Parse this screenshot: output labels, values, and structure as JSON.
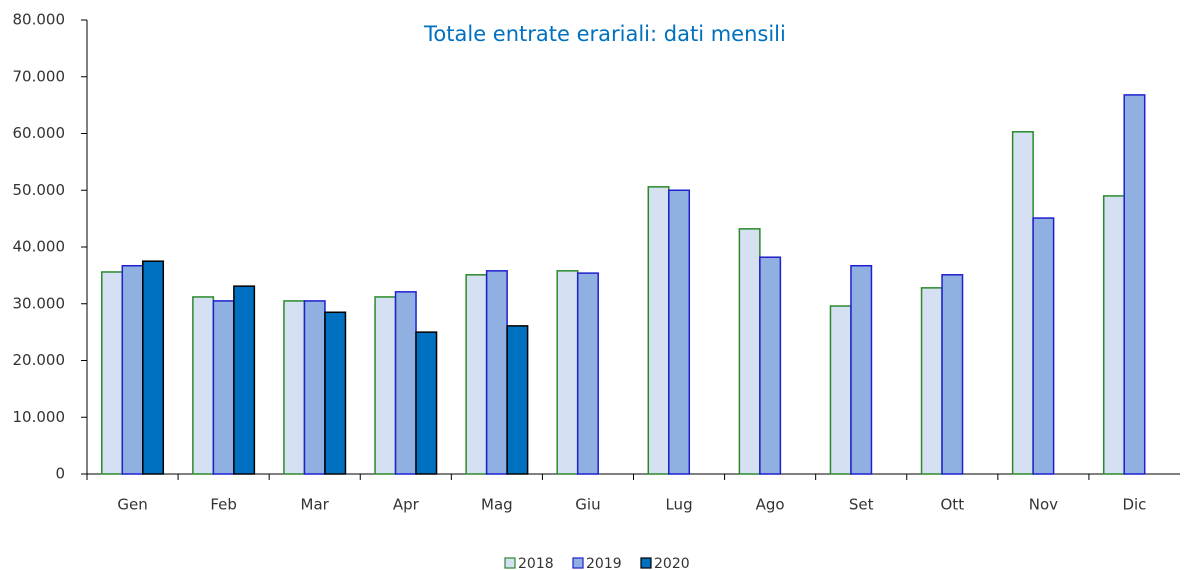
{
  "chart_data": {
    "type": "bar",
    "title": "Totale entrate erariali: dati mensili",
    "categories": [
      "Gen",
      "Feb",
      "Mar",
      "Apr",
      "Mag",
      "Giu",
      "Lug",
      "Ago",
      "Set",
      "Ott",
      "Nov",
      "Dic"
    ],
    "series": [
      {
        "name": "2018",
        "color": "#d6e0f3",
        "edge_color": "#2a8a2a",
        "values": [
          35600,
          31200,
          30500,
          31200,
          35100,
          35800,
          50600,
          43200,
          29600,
          32800,
          60300,
          49000
        ]
      },
      {
        "name": "2019",
        "color": "#8fb0e0",
        "edge_color": "#1f1fd0",
        "values": [
          36700,
          30500,
          30500,
          32100,
          35800,
          35400,
          50000,
          38200,
          36700,
          35100,
          45100,
          66800
        ]
      },
      {
        "name": "2020",
        "color": "#0070c0",
        "edge_color": "#000000",
        "values": [
          37500,
          33100,
          28500,
          25000,
          26100,
          null,
          null,
          null,
          null,
          null,
          null,
          null
        ]
      }
    ],
    "ylim": [
      0,
      80000
    ],
    "yticks": [
      0,
      {
        "value": 10000,
        "label": "10.000"
      },
      {
        "value": 20000,
        "label": "20.000"
      },
      {
        "value": 30000,
        "label": "30.000"
      },
      {
        "value": 40000,
        "label": "40.000"
      },
      {
        "value": 50000,
        "label": "50.000"
      },
      {
        "value": 60000,
        "label": "60.000"
      },
      {
        "value": 70000,
        "label": "70.000"
      },
      {
        "value": 80000,
        "label": "80.000"
      }
    ],
    "grid": false,
    "legend": "bottom"
  }
}
